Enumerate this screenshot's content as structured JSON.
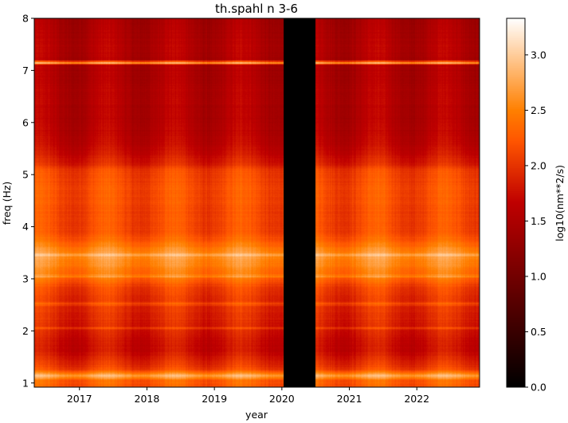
{
  "chart_data": {
    "type": "heatmap",
    "title": "th.spahl n 3-6",
    "xlabel": "year",
    "ylabel": "freq (Hz)",
    "xlim": [
      2016.33,
      2022.93
    ],
    "ylim": [
      0.92,
      8.0
    ],
    "x_ticks": [
      {
        "value": 2017,
        "label": "2017"
      },
      {
        "value": 2018,
        "label": "2018"
      },
      {
        "value": 2019,
        "label": "2019"
      },
      {
        "value": 2020,
        "label": "2020"
      },
      {
        "value": 2021,
        "label": "2021"
      },
      {
        "value": 2022,
        "label": "2022"
      }
    ],
    "y_ticks": [
      {
        "value": 1,
        "label": "1"
      },
      {
        "value": 2,
        "label": "2"
      },
      {
        "value": 3,
        "label": "3"
      },
      {
        "value": 4,
        "label": "4"
      },
      {
        "value": 5,
        "label": "5"
      },
      {
        "value": 6,
        "label": "6"
      },
      {
        "value": 7,
        "label": "7"
      },
      {
        "value": 8,
        "label": "8"
      }
    ],
    "colormap": "gist_heat",
    "colorbar": {
      "label": "log10(nm**2/s)",
      "range": [
        0.0,
        3.33
      ],
      "ticks": [
        {
          "value": 0.0,
          "label": "0.0"
        },
        {
          "value": 0.5,
          "label": "0.5"
        },
        {
          "value": 1.0,
          "label": "1.0"
        },
        {
          "value": 1.5,
          "label": "1.5"
        },
        {
          "value": 2.0,
          "label": "2.0"
        },
        {
          "value": 2.5,
          "label": "2.5"
        },
        {
          "value": 3.0,
          "label": "3.0"
        }
      ]
    },
    "data_gap": {
      "start": 2020.03,
      "end": 2020.5,
      "value": 0.0
    },
    "frequency_profile": {
      "freq": [
        0.92,
        1.05,
        1.1,
        1.14,
        1.18,
        1.25,
        1.3,
        1.45,
        1.6,
        1.8,
        2.0,
        2.2,
        2.4,
        2.6,
        2.8,
        3.0,
        3.2,
        3.35,
        3.45,
        3.55,
        3.7,
        3.9,
        4.1,
        4.3,
        4.6,
        4.9,
        5.1,
        5.2,
        5.4,
        5.6,
        5.8,
        6.0,
        6.3,
        6.6,
        7.0,
        7.4,
        7.8,
        8.0
      ],
      "level": [
        2.25,
        2.3,
        2.6,
        2.8,
        2.55,
        2.15,
        2.05,
        1.9,
        1.75,
        1.75,
        1.85,
        1.9,
        1.95,
        2.0,
        2.05,
        2.35,
        2.5,
        2.6,
        2.65,
        2.55,
        2.35,
        2.15,
        2.15,
        2.15,
        2.2,
        2.15,
        2.1,
        1.9,
        1.75,
        1.65,
        1.6,
        1.55,
        1.55,
        1.55,
        1.5,
        1.55,
        1.5,
        1.45
      ]
    },
    "spectral_lines": [
      {
        "freq": 7.15,
        "level": 2.7
      },
      {
        "freq": 3.46,
        "level": 2.85
      },
      {
        "freq": 3.05,
        "level": 2.6
      },
      {
        "freq": 2.52,
        "level": 2.2
      },
      {
        "freq": 2.05,
        "level": 2.1
      }
    ],
    "seasonal_modulation_amplitude": 0.15
  }
}
